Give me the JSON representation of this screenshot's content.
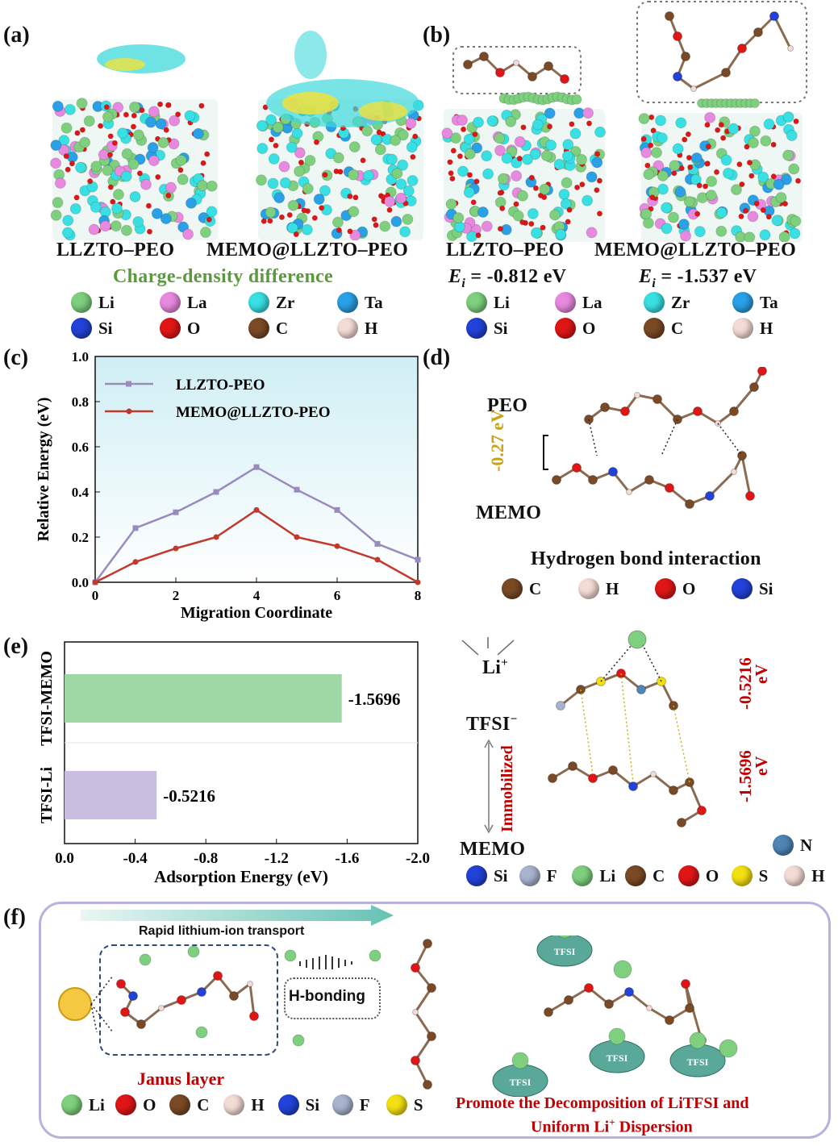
{
  "panels": {
    "a": "(a)",
    "b": "(b)",
    "c": "(c)",
    "d": "(d)",
    "e": "(e)",
    "f": "(f)"
  },
  "colors": {
    "Li": "#7ed07e",
    "La": "#e889e0",
    "Zr": "#39e0e3",
    "Ta": "#2aa0e6",
    "Si": "#2242d8",
    "O": "#e01616",
    "C": "#7a4a26",
    "H": "#f4dcd6",
    "F": "#a7b3cf",
    "S": "#f2e012",
    "N": "#4f86b6",
    "series_ref": "#9a8bbf",
    "series_memo": "#c0392b",
    "green_text": "#5a9a3c"
  },
  "panel_a": {
    "label_left": "LLZTO–PEO",
    "label_right": "MEMO@LLZTO–PEO",
    "subtitle": "Charge-density difference",
    "legend": [
      "Li",
      "La",
      "Zr",
      "Ta",
      "Si",
      "O",
      "C",
      "H"
    ]
  },
  "panel_b": {
    "label_left": "LLZTO–PEO",
    "label_right": "MEMO@LLZTO–PEO",
    "energy_left_sym": "E",
    "energy_left_sub": "i",
    "energy_left_val": " = -0.812 eV",
    "energy_right_sym": "E",
    "energy_right_sub": "i",
    "energy_right_val": " = -1.537 eV",
    "legend": [
      "Li",
      "La",
      "Zr",
      "Ta",
      "Si",
      "O",
      "C",
      "H"
    ]
  },
  "panel_d": {
    "peo": "PEO",
    "memo": "MEMO",
    "energy": "-0.27 eV",
    "caption": "Hydrogen bond interaction",
    "legend": [
      "C",
      "H",
      "O",
      "Si"
    ]
  },
  "panel_e_right": {
    "li": "Li",
    "li_sup": "+",
    "tfsi": "TFSI",
    "tfsi_sup": "−",
    "immobilized": "Immobilized",
    "memo": "MEMO",
    "e1": "-0.5216",
    "e1_unit": "eV",
    "e2": "-1.5696",
    "e2_unit": "eV",
    "legend": [
      "Si",
      "F",
      "Li",
      "C",
      "O",
      "S",
      "H"
    ],
    "legend_extra": "N"
  },
  "panel_f": {
    "arrow_label": "Rapid lithium-ion transport",
    "hbond": "H-bonding",
    "janus": "Janus layer",
    "tfsi_label": "TFSI",
    "caption_line1": "Promote the Decomposition of LiTFSI  and",
    "caption_line2": "Uniform Li",
    "caption_line2_sup": "+",
    "caption_line2_end": " Dispersion",
    "legend": [
      "Li",
      "O",
      "C",
      "H",
      "Si",
      "F",
      "S"
    ]
  },
  "chart_data": [
    {
      "type": "line",
      "panel": "c",
      "xlabel": "Migration Coordinate",
      "ylabel": "Relative Energy (eV)",
      "xlim": [
        0,
        8
      ],
      "ylim": [
        0.0,
        1.0
      ],
      "xticks": [
        0,
        2,
        4,
        6,
        8
      ],
      "yticks": [
        0.0,
        0.2,
        0.4,
        0.6,
        0.8,
        1.0
      ],
      "legend_position": "top-left",
      "series": [
        {
          "name": "LLZTO-PEO",
          "color": "#9a8bbf",
          "marker": "square",
          "x": [
            0,
            1,
            2,
            3,
            4,
            5,
            6,
            7,
            8
          ],
          "y": [
            0.0,
            0.24,
            0.31,
            0.4,
            0.51,
            0.41,
            0.32,
            0.17,
            0.1
          ]
        },
        {
          "name": "MEMO@LLZTO-PEO",
          "color": "#c0392b",
          "marker": "circle",
          "x": [
            0,
            1,
            2,
            3,
            4,
            5,
            6,
            7,
            8
          ],
          "y": [
            0.0,
            0.09,
            0.15,
            0.2,
            0.32,
            0.2,
            0.16,
            0.1,
            0.0
          ]
        }
      ]
    },
    {
      "type": "bar",
      "panel": "e",
      "orientation": "horizontal",
      "xlabel": "Adsorption Energy (eV)",
      "xlim": [
        0.0,
        -2.0
      ],
      "xticks": [
        "0.0",
        "-0.4",
        "-0.8",
        "-1.2",
        "-1.6",
        "-2.0"
      ],
      "categories": [
        "TFSI-MEMO",
        "TFSI-Li"
      ],
      "values": [
        -1.5696,
        -0.5216
      ],
      "value_labels": [
        "-1.5696",
        "-0.5216"
      ],
      "bar_colors": [
        "#9fd8a4",
        "#c9bedf"
      ]
    }
  ]
}
